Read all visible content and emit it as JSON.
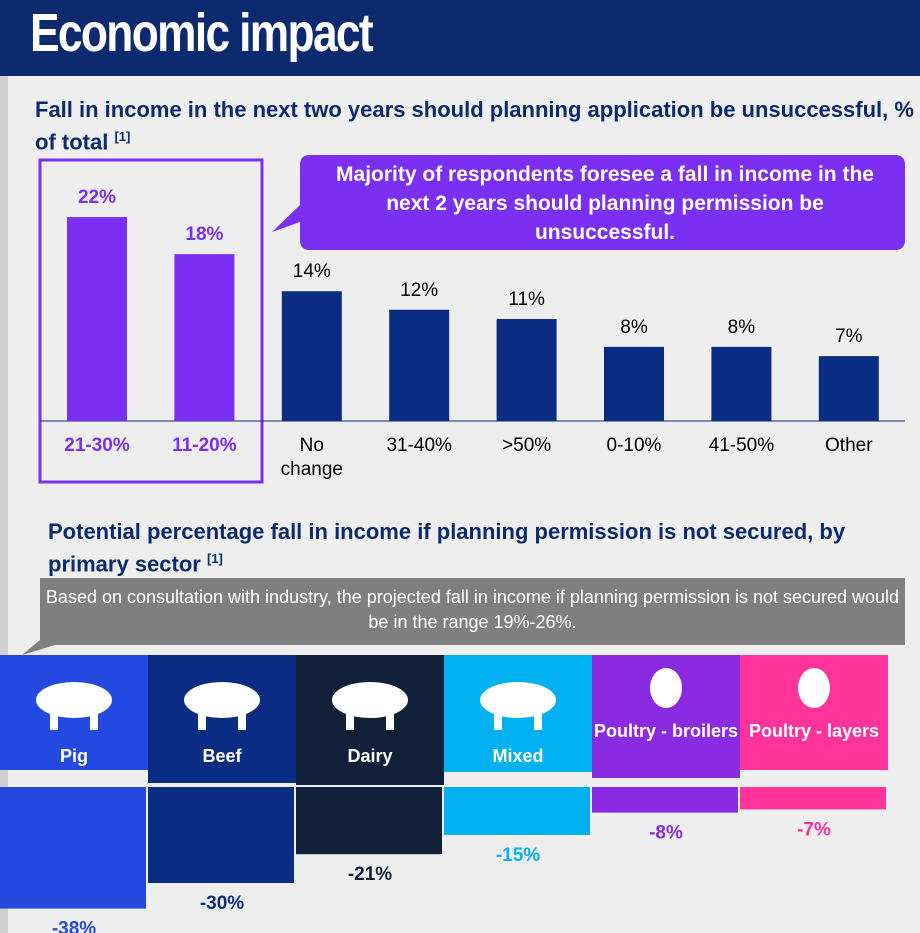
{
  "header": {
    "title": "Economic impact"
  },
  "chart_data": [
    {
      "type": "bar",
      "title": "Fall in income in the next two years should planning application be unsuccessful, % of total",
      "title_note": "[1]",
      "callout": "Majority of respondents foresee a fall in income in the next 2 years should planning permission be unsuccessful.",
      "categories": [
        "21-30%",
        "11-20%",
        "No change",
        "31-40%",
        ">50%",
        "0-10%",
        "41-50%",
        "Other"
      ],
      "values": [
        22,
        18,
        14,
        12,
        11,
        8,
        8,
        7
      ],
      "value_labels": [
        "22%",
        "18%",
        "14%",
        "12%",
        "11%",
        "8%",
        "8%",
        "7%"
      ],
      "colors": [
        "#7b2ff2",
        "#7b2ff2",
        "#0a2c82",
        "#0a2c82",
        "#0a2c82",
        "#0a2c82",
        "#0a2c82",
        "#0a2c82"
      ],
      "label_colors": [
        "#7b2ff2",
        "#7b2ff2",
        "#000000",
        "#000000",
        "#000000",
        "#000000",
        "#000000",
        "#000000"
      ]
    },
    {
      "type": "bar",
      "title": "Potential percentage fall in income if planning permission is not secured, by primary sector",
      "title_note": "[1]",
      "callout": "Based on consultation with industry, the projected fall in income if planning permission is not secured would be in the range 19%-26%.",
      "categories": [
        "Pig",
        "Beef",
        "Dairy",
        "Mixed",
        "Poultry - broilers",
        "Poultry - layers"
      ],
      "values": [
        -38,
        -30,
        -21,
        -15,
        -8,
        -7
      ],
      "value_labels": [
        "-38%",
        "-30%",
        "-21%",
        "-15%",
        "-8%",
        "-7%"
      ],
      "colors": [
        "#2449e0",
        "#0a2c82",
        "#0f2038",
        "#00b0f0",
        "#8a2be2",
        "#ff3399"
      ]
    }
  ]
}
